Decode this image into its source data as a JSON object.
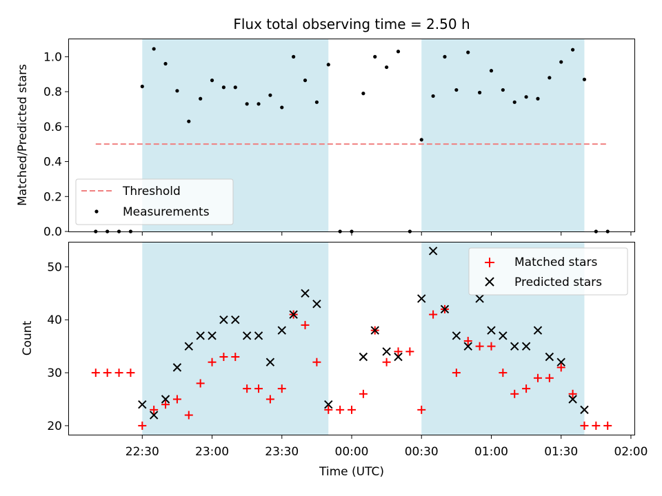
{
  "chart_data": {
    "title": "Flux total observing time = 2.50 h",
    "xlabel": "Time (UTC)",
    "xtick_labels": [
      "22:30",
      "23:00",
      "23:30",
      "00:00",
      "00:30",
      "01:00",
      "01:30",
      "02:00"
    ],
    "xtick_minutes": [
      0,
      30,
      60,
      90,
      120,
      150,
      180,
      210
    ],
    "xlim_minutes": [
      -31.5,
      211.5
    ],
    "x_origin": "22:30",
    "shaded_intervals_minutes": [
      [
        0,
        80
      ],
      [
        120,
        190
      ]
    ],
    "shade_color": "#add8e6",
    "panels": [
      {
        "type": "scatter",
        "ylabel": "Matched/Predicted stars",
        "ylim": [
          0,
          1.1
        ],
        "yticks": [
          0,
          0.2,
          0.4,
          0.6,
          0.8,
          1.0
        ],
        "ytick_labels": [
          "0.0",
          "0.2",
          "0.4",
          "0.6",
          "0.8",
          "1.0"
        ],
        "legend_position": "lower-left",
        "series": [
          {
            "name": "Threshold",
            "style": "dashed-line",
            "color": "#f08080",
            "x": [
              -20,
              200
            ],
            "y": [
              0.5,
              0.5
            ]
          },
          {
            "name": "Measurements",
            "style": "dot",
            "color": "#000000",
            "x": [
              -20,
              -15,
              -10,
              -5,
              0,
              5,
              10,
              15,
              20,
              25,
              30,
              35,
              40,
              45,
              50,
              55,
              60,
              65,
              70,
              75,
              80,
              85,
              90,
              95,
              100,
              105,
              110,
              115,
              120,
              125,
              130,
              135,
              140,
              145,
              150,
              155,
              160,
              165,
              170,
              175,
              180,
              185,
              190,
              195,
              200
            ],
            "y": [
              0,
              0,
              0,
              0,
              0.83,
              1.045,
              0.96,
              0.805,
              0.63,
              0.76,
              0.865,
              0.825,
              0.825,
              0.73,
              0.73,
              0.78,
              0.71,
              1.0,
              0.865,
              0.74,
              0.955,
              0,
              0,
              0.79,
              1.0,
              0.94,
              1.03,
              0,
              0.525,
              0.775,
              1.0,
              0.81,
              1.025,
              0.795,
              0.92,
              0.81,
              0.74,
              0.77,
              0.76,
              0.88,
              0.97,
              1.04,
              0.87,
              0,
              0
            ]
          }
        ]
      },
      {
        "type": "scatter",
        "ylabel": "Count",
        "ylim": [
          18.3,
          54.6
        ],
        "yticks": [
          20,
          30,
          40,
          50
        ],
        "ytick_labels": [
          "20",
          "30",
          "40",
          "50"
        ],
        "legend_position": "upper-right",
        "series": [
          {
            "name": "Matched stars",
            "marker": "plus",
            "color": "#ff0000",
            "x": [
              -20,
              -15,
              -10,
              -5,
              0,
              5,
              10,
              15,
              20,
              25,
              30,
              35,
              40,
              45,
              50,
              55,
              60,
              65,
              70,
              75,
              80,
              85,
              90,
              95,
              100,
              105,
              110,
              115,
              120,
              125,
              130,
              135,
              140,
              145,
              150,
              155,
              160,
              165,
              170,
              175,
              180,
              185,
              190,
              195,
              200
            ],
            "y": [
              30,
              30,
              30,
              30,
              20,
              23,
              24,
              25,
              22,
              28,
              32,
              33,
              33,
              27,
              27,
              25,
              27,
              41,
              39,
              32,
              23,
              23,
              23,
              26,
              38,
              32,
              34,
              34,
              23,
              41,
              42,
              30,
              36,
              35,
              35,
              30,
              26,
              27,
              29,
              29,
              31,
              26,
              20,
              20,
              20
            ]
          },
          {
            "name": "Predicted stars",
            "marker": "x",
            "color": "#000000",
            "x": [
              0,
              5,
              10,
              15,
              20,
              25,
              30,
              35,
              40,
              45,
              50,
              55,
              60,
              65,
              70,
              75,
              80,
              95,
              100,
              105,
              110,
              120,
              125,
              130,
              135,
              140,
              145,
              150,
              155,
              160,
              165,
              170,
              175,
              180,
              185,
              190
            ],
            "y": [
              24,
              22,
              25,
              31,
              35,
              37,
              37,
              40,
              40,
              37,
              37,
              32,
              38,
              41,
              45,
              43,
              24,
              33,
              38,
              34,
              33,
              44,
              53,
              42,
              37,
              35,
              44,
              38,
              37,
              35,
              35,
              38,
              33,
              32,
              25,
              23
            ]
          }
        ]
      }
    ]
  }
}
